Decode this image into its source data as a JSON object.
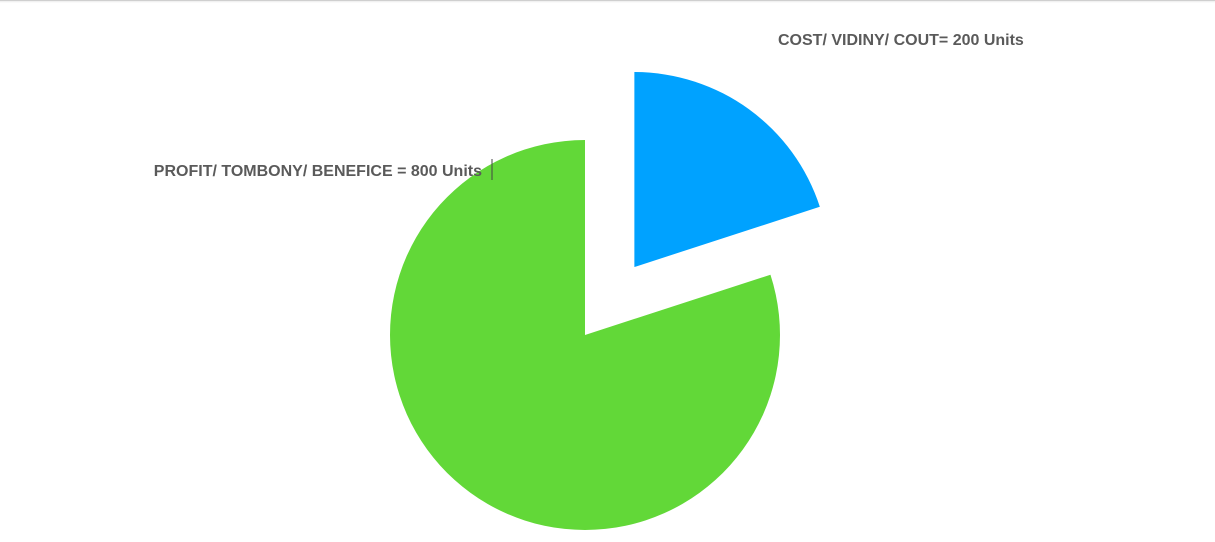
{
  "chart_data": {
    "type": "pie",
    "slices": [
      {
        "label": "COST/ VIDINY/ COUT= 200 Units",
        "value": 200,
        "color": "#00a2ff",
        "exploded": true
      },
      {
        "label": "PROFIT/ TOMBONY/ BENEFICE = 800 Units",
        "value": 800,
        "color": "#62d838",
        "exploded": false
      }
    ],
    "start": "top",
    "direction": "clockwise",
    "legend": "none"
  }
}
